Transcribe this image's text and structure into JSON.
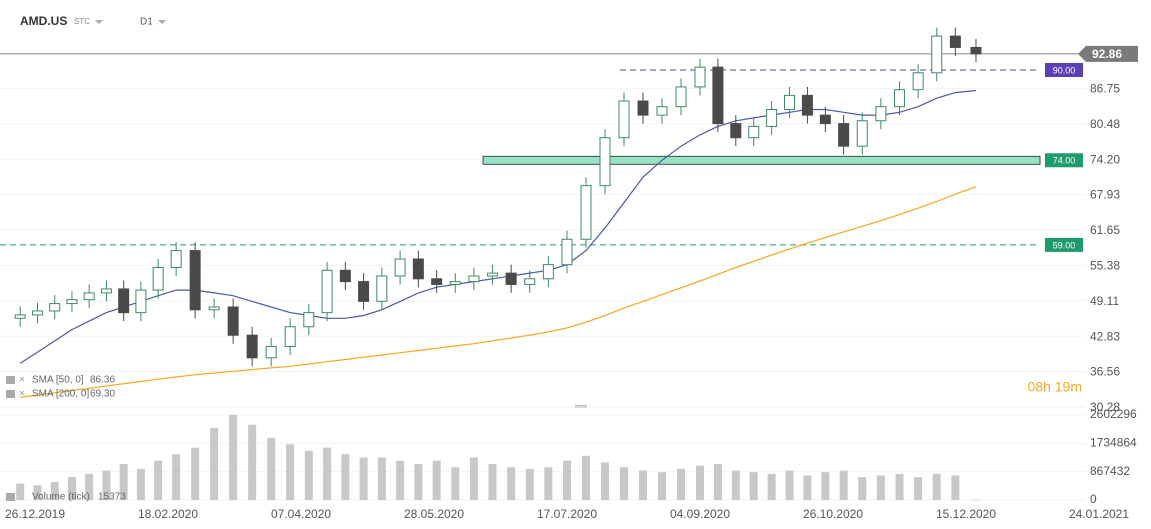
{
  "chart_data": {
    "type": "candlestick",
    "symbol": "AMD.US",
    "exchange": "STC",
    "interval": "D1",
    "countdown": "08h 19m",
    "x": [
      "20.12.2019",
      "27.12.2019",
      "03.01.2020",
      "10.01.2020",
      "17.01.2020",
      "24.01.2020",
      "31.01.2020",
      "07.02.2020",
      "14.02.2020",
      "21.02.2020",
      "28.02.2020",
      "06.03.2020",
      "13.03.2020",
      "20.03.2020",
      "27.03.2020",
      "03.04.2020",
      "10.04.2020",
      "17.04.2020",
      "24.04.2020",
      "01.05.2020",
      "08.05.2020",
      "15.05.2020",
      "22.05.2020",
      "29.05.2020",
      "05.06.2020",
      "12.06.2020",
      "19.06.2020",
      "26.06.2020",
      "03.07.2020",
      "10.07.2020",
      "17.07.2020",
      "24.07.2020",
      "31.07.2020",
      "07.08.2020",
      "14.08.2020",
      "21.08.2020",
      "28.08.2020",
      "04.09.2020",
      "11.09.2020",
      "18.09.2020",
      "25.09.2020",
      "02.10.2020",
      "09.10.2020",
      "16.10.2020",
      "23.10.2020",
      "30.10.2020",
      "06.11.2020",
      "13.11.2020",
      "20.11.2020",
      "27.11.2020",
      "04.12.2020",
      "11.12.2020",
      "18.12.2020"
    ],
    "open": [
      46.0,
      46.6,
      47.3,
      48.6,
      49.3,
      50.5,
      51.2,
      47.0,
      51.0,
      55.0,
      58.0,
      47.5,
      48.0,
      43.0,
      39.0,
      41.0,
      44.5,
      47.0,
      54.5,
      52.5,
      49.0,
      53.5,
      56.5,
      53.0,
      52.0,
      52.5,
      53.5,
      54.0,
      52.0,
      53.0,
      55.5,
      60.0,
      69.5,
      78.0,
      84.5,
      82.0,
      83.5,
      87.0,
      90.5,
      80.5,
      78.0,
      80.0,
      83.0,
      85.5,
      82.0,
      80.5,
      76.5,
      81.0,
      83.5,
      86.5,
      89.5,
      96.0,
      94.0
    ],
    "high": [
      48.1,
      48.8,
      50.1,
      50.8,
      52.0,
      52.7,
      52.7,
      52.5,
      56.5,
      59.5,
      59.5,
      49.5,
      49.5,
      44.5,
      42.5,
      46.0,
      48.5,
      56.0,
      56.0,
      54.0,
      55.0,
      58.0,
      58.0,
      54.5,
      54.0,
      55.0,
      55.5,
      55.5,
      54.5,
      57.0,
      61.5,
      71.0,
      79.5,
      86.0,
      86.0,
      85.0,
      88.5,
      92.0,
      92.0,
      82.0,
      81.5,
      84.5,
      87.0,
      87.0,
      83.5,
      82.0,
      82.5,
      85.0,
      88.0,
      91.0,
      97.5,
      97.5,
      95.5
    ],
    "low": [
      44.5,
      45.1,
      45.8,
      47.1,
      47.8,
      49.0,
      45.5,
      45.5,
      49.5,
      53.5,
      46.0,
      46.0,
      41.5,
      37.5,
      37.5,
      39.5,
      43.0,
      45.5,
      51.0,
      47.5,
      47.5,
      52.0,
      51.5,
      50.5,
      50.5,
      51.0,
      52.0,
      50.5,
      50.5,
      51.5,
      54.0,
      58.5,
      68.0,
      76.5,
      80.5,
      80.5,
      82.0,
      85.5,
      79.0,
      76.5,
      76.5,
      78.5,
      81.5,
      80.5,
      79.0,
      75.0,
      75.0,
      79.5,
      82.0,
      85.0,
      88.0,
      92.5,
      91.4
    ],
    "close": [
      46.6,
      47.3,
      48.6,
      49.3,
      50.5,
      51.2,
      47.0,
      51.0,
      55.0,
      58.0,
      47.5,
      48.0,
      43.0,
      39.0,
      41.0,
      44.5,
      47.0,
      54.5,
      52.5,
      49.0,
      53.5,
      56.5,
      53.0,
      52.0,
      52.5,
      53.5,
      54.0,
      52.0,
      53.0,
      55.5,
      60.0,
      69.5,
      78.0,
      84.5,
      82.0,
      83.5,
      87.0,
      90.5,
      80.5,
      78.0,
      80.0,
      83.0,
      85.5,
      82.0,
      80.5,
      76.5,
      81.0,
      83.5,
      86.5,
      89.5,
      96.0,
      94.0,
      92.86
    ],
    "up_color": "#3d8b62",
    "down_color": "#4a4a4a",
    "ylim": [
      30.28,
      102.4
    ],
    "yticks": [
      30.28,
      36.56,
      42.83,
      49.11,
      55.38,
      61.65,
      67.93,
      {
        "value": 74.2,
        "label": "74.20"
      },
      80.48,
      86.75
    ],
    "current_price": 92.86,
    "levels": [
      {
        "value": 90,
        "label": "90.00",
        "color": "#5b3fb3",
        "style": "dashed"
      },
      {
        "value": 74,
        "label": "74.00",
        "color": "#1f9c6b",
        "style": "zone"
      },
      {
        "value": 59,
        "label": "59.00",
        "color": "#1f9c6b",
        "style": "dashed"
      }
    ],
    "indicators": [
      {
        "name": "SMA [50, 0]",
        "value_label": "86.36",
        "color": "#4b5aa6",
        "values": [
          38,
          40,
          42,
          44,
          45.5,
          47,
          48,
          49,
          50,
          51,
          51,
          50.5,
          50,
          49,
          48,
          47,
          46.5,
          46,
          46,
          46.5,
          47.5,
          49,
          50.5,
          51.5,
          52,
          52.5,
          53,
          53.5,
          54,
          54.5,
          55.5,
          58,
          62,
          66.5,
          71,
          74,
          76.5,
          78.5,
          80,
          81,
          81.5,
          82,
          82.5,
          83,
          83,
          82.5,
          82,
          82,
          82.5,
          83.5,
          85,
          86,
          86.36
        ]
      },
      {
        "name": "SMA [200, 0]",
        "value_label": "69.30",
        "color": "#f5a623",
        "values": [
          32.0,
          32.4,
          32.8,
          33.2,
          33.6,
          34.0,
          34.4,
          34.8,
          35.2,
          35.6,
          36.0,
          36.3,
          36.6,
          36.9,
          37.2,
          37.5,
          37.9,
          38.3,
          38.7,
          39.1,
          39.5,
          39.9,
          40.3,
          40.7,
          41.1,
          41.5,
          42.0,
          42.5,
          43.0,
          43.6,
          44.3,
          45.3,
          46.5,
          47.8,
          49.0,
          50.2,
          51.4,
          52.6,
          53.8,
          55.0,
          56.1,
          57.2,
          58.3,
          59.3,
          60.3,
          61.3,
          62.3,
          63.3,
          64.4,
          65.5,
          66.7,
          68.0,
          69.3
        ]
      }
    ],
    "volume": {
      "name": "Volume (tick)",
      "color": "#c8c8c8",
      "values": [
        500000,
        450000,
        550000,
        700000,
        800000,
        900000,
        1100000,
        950000,
        1200000,
        1400000,
        1600000,
        2200000,
        2600000,
        2300000,
        1900000,
        1700000,
        1500000,
        1600000,
        1400000,
        1300000,
        1300000,
        1200000,
        1100000,
        1200000,
        1000000,
        1300000,
        1100000,
        1000000,
        950000,
        1000000,
        1200000,
        1350000,
        1150000,
        1000000,
        900000,
        850000,
        950000,
        1050000,
        1100000,
        900000,
        850000,
        800000,
        900000,
        750000,
        850000,
        900000,
        700000,
        750000,
        800000,
        700000,
        800000,
        750000,
        15373
      ],
      "ylim": [
        0,
        2750000
      ],
      "yticks": [
        0,
        867432,
        1734864,
        2602296
      ]
    },
    "xticks": [
      "26.12.2019",
      "18.02.2020",
      "07.04.2020",
      "28.05.2020",
      "17.07.2020",
      "04.09.2020",
      "26.10.2020",
      "15.12.2020",
      "24.01.2021"
    ]
  }
}
